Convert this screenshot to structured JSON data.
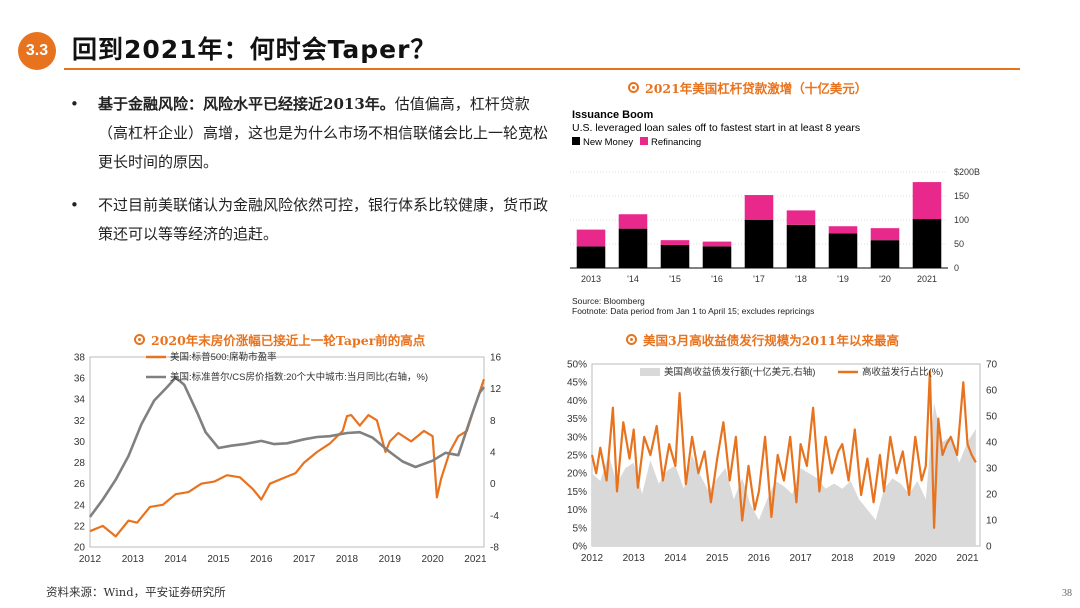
{
  "header": {
    "section": "3.3",
    "title": "回到2021年：何时会Taper？"
  },
  "bullets": [
    {
      "bold": "基于金融风险：风险水平已经接近2013年。",
      "text": "估值偏高，杠杆贷款（高杠杆企业）高增，这也是为什么市场不相信联储会比上一轮宽松更长时间的原因。"
    },
    {
      "bold": "",
      "text": "不过目前美联储认为金融风险依然可控，银行体系比较健康，货币政策还可以等等经济的追赶。"
    }
  ],
  "chart_titles": {
    "loans": "2021年美国杠杆贷款激增（十亿美元）",
    "housing": "2020年末房价涨幅已接近上一轮Taper前的高点",
    "hy": "美国3月高收益债发行规模为2011年以来最高"
  },
  "source": "资料来源：Wind，平安证券研究所",
  "page_number": "38",
  "chart_data": [
    {
      "type": "bar",
      "title": "Issuance Boom",
      "subtitle": "U.S. leveraged loan sales off to fastest start in at least 8 years",
      "categories": [
        "2013",
        "'14",
        "'15",
        "'16",
        "'17",
        "'18",
        "'19",
        "'20",
        "2021"
      ],
      "series": [
        {
          "name": "New Money",
          "color": "#000000",
          "values": [
            45,
            82,
            48,
            45,
            100,
            90,
            72,
            58,
            102
          ]
        },
        {
          "name": "Refinancing",
          "color": "#e8288a",
          "values": [
            35,
            30,
            10,
            10,
            52,
            30,
            15,
            25,
            77
          ]
        }
      ],
      "ylim": [
        0,
        200
      ],
      "yticks": [
        "0",
        "50",
        "100",
        "150",
        "$200B"
      ],
      "footer": [
        "Source: Bloomberg",
        "Footnote: Data period from Jan 1 to April 15; excludes repricings"
      ]
    },
    {
      "type": "line",
      "xlabels": [
        "2012",
        "2013",
        "2014",
        "2015",
        "2016",
        "2017",
        "2018",
        "2019",
        "2020",
        "2021"
      ],
      "xrange": [
        2012,
        2021.2
      ],
      "left_axis": {
        "range": [
          20,
          38
        ],
        "ticks": [
          "20",
          "22",
          "24",
          "26",
          "28",
          "30",
          "32",
          "34",
          "36",
          "38"
        ]
      },
      "right_axis": {
        "range": [
          -8,
          16
        ],
        "ticks": [
          "-8",
          "-4",
          "0",
          "4",
          "8",
          "12",
          "16"
        ]
      },
      "series": [
        {
          "name": "美国:标普500:席勒市盈率",
          "axis": "left",
          "color": "#e8731f",
          "x": [
            2012,
            2012.3,
            2012.6,
            2012.9,
            2013.1,
            2013.4,
            2013.7,
            2014,
            2014.3,
            2014.6,
            2014.9,
            2015.2,
            2015.5,
            2015.8,
            2016.0,
            2016.2,
            2016.5,
            2016.8,
            2017.0,
            2017.3,
            2017.6,
            2017.9,
            2018.0,
            2018.1,
            2018.3,
            2018.5,
            2018.7,
            2018.9,
            2019.0,
            2019.2,
            2019.5,
            2019.8,
            2020.0,
            2020.1,
            2020.2,
            2020.4,
            2020.6,
            2020.8,
            2021.0,
            2021.2
          ],
          "y": [
            21.5,
            22.0,
            21.0,
            22.5,
            22.3,
            23.8,
            24.0,
            25.0,
            25.2,
            26.0,
            26.2,
            26.8,
            26.6,
            25.5,
            24.5,
            26.0,
            26.5,
            27.0,
            28.0,
            29.0,
            29.8,
            31.0,
            32.4,
            32.5,
            31.5,
            32.5,
            32.0,
            29.0,
            30.0,
            30.8,
            30.0,
            31.0,
            30.5,
            24.7,
            26.5,
            29.0,
            30.5,
            31.0,
            33.5,
            35.9
          ]
        },
        {
          "name": "美国:标准普尔/CS房价指数:20个大中城市:当月同比(右轴，%)",
          "axis": "right",
          "color": "#808080",
          "x": [
            2012,
            2012.3,
            2012.6,
            2012.9,
            2013.2,
            2013.5,
            2013.8,
            2014,
            2014.2,
            2014.5,
            2014.7,
            2015,
            2015.3,
            2015.6,
            2016,
            2016.3,
            2016.6,
            2017,
            2017.3,
            2017.6,
            2018,
            2018.3,
            2018.6,
            2019,
            2019.3,
            2019.6,
            2020,
            2020.3,
            2020.6,
            2020.9,
            2021.1,
            2021.2
          ],
          "y": [
            -4.2,
            -2.0,
            0.5,
            3.5,
            7.5,
            10.5,
            12.2,
            13.4,
            12.5,
            9.0,
            6.5,
            4.5,
            4.8,
            5.0,
            5.4,
            5.0,
            5.1,
            5.6,
            5.9,
            6.0,
            6.4,
            6.5,
            5.8,
            4.0,
            2.8,
            2.1,
            2.9,
            3.9,
            3.6,
            8.5,
            11.5,
            12.2
          ]
        }
      ]
    },
    {
      "type": "area",
      "xlabels": [
        "2012",
        "2013",
        "2014",
        "2015",
        "2016",
        "2017",
        "2018",
        "2019",
        "2020",
        "2021"
      ],
      "xrange": [
        2012,
        2021.3
      ],
      "left_axis": {
        "range": [
          0,
          0.5
        ],
        "ticks": [
          "0%",
          "5%",
          "10%",
          "15%",
          "20%",
          "25%",
          "30%",
          "35%",
          "40%",
          "45%",
          "50%"
        ]
      },
      "right_axis": {
        "range": [
          0,
          70
        ],
        "ticks": [
          "0",
          "10",
          "20",
          "30",
          "40",
          "50",
          "60",
          "70"
        ]
      },
      "series": [
        {
          "name": "美国高收益债发行额(十亿美元,右轴)",
          "axis": "right",
          "color": "#d9d9d9",
          "x": [
            2012,
            2012.2,
            2012.4,
            2012.6,
            2012.8,
            2013,
            2013.2,
            2013.4,
            2013.6,
            2013.8,
            2014,
            2014.2,
            2014.4,
            2014.6,
            2014.8,
            2015,
            2015.2,
            2015.4,
            2015.6,
            2015.8,
            2016,
            2016.2,
            2016.4,
            2016.6,
            2016.8,
            2017,
            2017.2,
            2017.4,
            2017.6,
            2017.8,
            2018,
            2018.2,
            2018.4,
            2018.6,
            2018.8,
            2019,
            2019.2,
            2019.4,
            2019.6,
            2019.8,
            2020,
            2020.2,
            2020.4,
            2020.6,
            2020.8,
            2021,
            2021.2
          ],
          "y": [
            28,
            25,
            35,
            24,
            30,
            32,
            20,
            33,
            24,
            29,
            31,
            22,
            35,
            27,
            21,
            26,
            30,
            18,
            26,
            16,
            10,
            18,
            25,
            23,
            20,
            30,
            28,
            26,
            22,
            24,
            22,
            25,
            18,
            14,
            10,
            22,
            26,
            24,
            20,
            25,
            18,
            55,
            40,
            42,
            32,
            40,
            45
          ]
        },
        {
          "name": "高收益发行占比(%)",
          "axis": "left",
          "color": "#e8731f",
          "x": [
            2012,
            2012.1,
            2012.2,
            2012.35,
            2012.5,
            2012.6,
            2012.75,
            2012.9,
            2013,
            2013.1,
            2013.25,
            2013.4,
            2013.55,
            2013.7,
            2013.85,
            2014,
            2014.1,
            2014.25,
            2014.4,
            2014.55,
            2014.7,
            2014.85,
            2015,
            2015.15,
            2015.3,
            2015.45,
            2015.6,
            2015.75,
            2015.9,
            2016,
            2016.15,
            2016.3,
            2016.45,
            2016.6,
            2016.75,
            2016.9,
            2017,
            2017.15,
            2017.3,
            2017.45,
            2017.6,
            2017.75,
            2017.9,
            2018,
            2018.15,
            2018.3,
            2018.45,
            2018.6,
            2018.75,
            2018.9,
            2019,
            2019.15,
            2019.3,
            2019.45,
            2019.6,
            2019.75,
            2019.9,
            2020,
            2020.1,
            2020.2,
            2020.3,
            2020.4,
            2020.5,
            2020.6,
            2020.75,
            2020.9,
            2021,
            2021.1,
            2021.2
          ],
          "y": [
            0.25,
            0.2,
            0.27,
            0.18,
            0.38,
            0.15,
            0.34,
            0.24,
            0.32,
            0.16,
            0.3,
            0.25,
            0.33,
            0.18,
            0.28,
            0.22,
            0.42,
            0.17,
            0.3,
            0.2,
            0.26,
            0.12,
            0.24,
            0.34,
            0.18,
            0.3,
            0.07,
            0.22,
            0.1,
            0.15,
            0.3,
            0.08,
            0.25,
            0.18,
            0.3,
            0.12,
            0.28,
            0.22,
            0.38,
            0.15,
            0.3,
            0.2,
            0.26,
            0.28,
            0.18,
            0.32,
            0.14,
            0.24,
            0.12,
            0.25,
            0.15,
            0.3,
            0.2,
            0.26,
            0.14,
            0.3,
            0.18,
            0.22,
            0.48,
            0.05,
            0.35,
            0.25,
            0.28,
            0.3,
            0.25,
            0.45,
            0.28,
            0.25,
            0.23
          ]
        }
      ]
    }
  ]
}
